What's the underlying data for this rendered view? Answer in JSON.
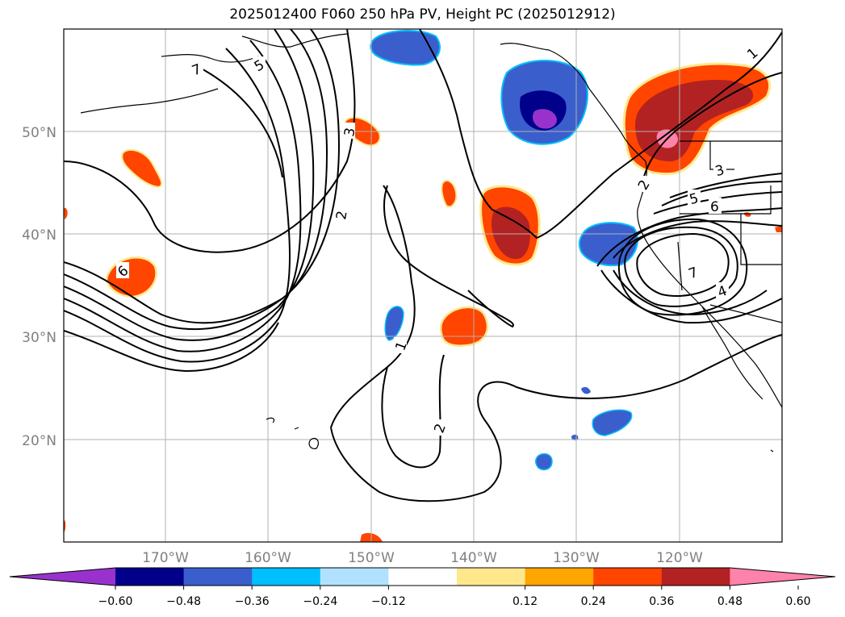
{
  "title": "2025012400 F060 250 hPa PV, Height PC (2025012912)",
  "lat_labels": [
    "50°N",
    "40°N",
    "30°N",
    "20°N"
  ],
  "lon_labels": [
    "170°W",
    "160°W",
    "150°W",
    "140°W",
    "130°W",
    "120°W"
  ],
  "colorbar": {
    "ticks": [
      "−0.60",
      "−0.48",
      "−0.36",
      "−0.24",
      "−0.12",
      "0.12",
      "0.24",
      "0.36",
      "0.48",
      "0.60"
    ],
    "colors": [
      "#9932cc",
      "#00008b",
      "#3a5fcd",
      "#00bfff",
      "#b0e2ff",
      "#ffffff",
      "#ffe88c",
      "#ffa500",
      "#ff4500",
      "#b22222",
      "#ff82ab"
    ]
  },
  "contour_labels": [
    "7",
    "5",
    "3",
    "2",
    "1",
    "6",
    "2",
    "1",
    "2",
    "3",
    "5",
    "6",
    "7",
    "4",
    "1"
  ]
}
